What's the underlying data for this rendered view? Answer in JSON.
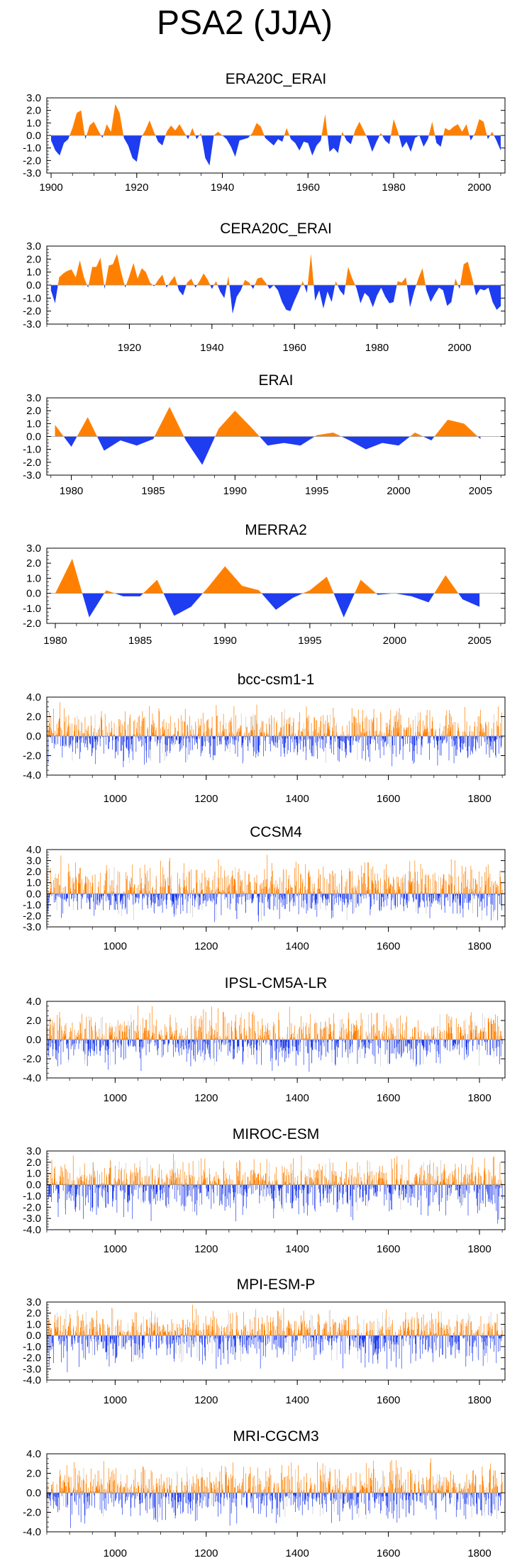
{
  "title": "PSA2 (JJA)",
  "colors": {
    "positive": "#ff8000",
    "negative": "#1e3cf0",
    "axis": "#000000"
  },
  "chart_data": [
    {
      "type": "area",
      "title": "ERA20C_ERAI",
      "xlim": [
        1899,
        2006
      ],
      "ylim": [
        -3.0,
        3.0
      ],
      "yticks": [
        "3.0",
        "2.0",
        "1.0",
        "0.0",
        "-1.0",
        "-2.0",
        "-3.0"
      ],
      "xticks": [
        1900,
        1920,
        1940,
        1960,
        1980,
        2000
      ],
      "x": [
        1900,
        1901,
        1902,
        1903,
        1904,
        1905,
        1906,
        1907,
        1908,
        1909,
        1910,
        1911,
        1912,
        1913,
        1914,
        1915,
        1916,
        1917,
        1918,
        1919,
        1920,
        1921,
        1922,
        1923,
        1924,
        1925,
        1926,
        1927,
        1928,
        1929,
        1930,
        1931,
        1932,
        1933,
        1934,
        1935,
        1936,
        1937,
        1938,
        1939,
        1940,
        1941,
        1942,
        1943,
        1944,
        1945,
        1946,
        1947,
        1948,
        1949,
        1950,
        1951,
        1952,
        1953,
        1954,
        1955,
        1956,
        1957,
        1958,
        1959,
        1960,
        1961,
        1962,
        1963,
        1964,
        1965,
        1966,
        1967,
        1968,
        1969,
        1970,
        1971,
        1972,
        1973,
        1974,
        1975,
        1976,
        1977,
        1978,
        1979,
        1980,
        1981,
        1982,
        1983,
        1984,
        1985,
        1986,
        1987,
        1988,
        1989,
        1990,
        1991,
        1992,
        1993,
        1994,
        1995,
        1996,
        1997,
        1998,
        1999,
        2000,
        2001,
        2002,
        2003,
        2004,
        2005
      ],
      "values": [
        -0.4,
        -1.2,
        -1.6,
        -0.6,
        -0.3,
        0.6,
        1.8,
        2.0,
        -0.3,
        0.8,
        1.1,
        0.4,
        -0.2,
        0.9,
        0.3,
        2.5,
        1.8,
        -0.2,
        -0.8,
        -1.8,
        -2.1,
        -0.2,
        0.4,
        1.2,
        0.3,
        -0.5,
        -0.8,
        0.3,
        0.8,
        0.4,
        0.9,
        0.3,
        -0.3,
        0.6,
        -0.3,
        0.2,
        -1.8,
        -2.4,
        0.0,
        0.3,
        0.0,
        -0.3,
        -0.9,
        -1.7,
        -0.4,
        -0.3,
        -0.2,
        0.2,
        1.0,
        0.7,
        -0.2,
        -0.5,
        -0.8,
        -0.3,
        -0.5,
        0.6,
        -0.3,
        -0.6,
        -1.2,
        -0.5,
        -0.6,
        -1.6,
        -0.8,
        -0.4,
        1.7,
        -1.3,
        -1.0,
        -1.4,
        0.3,
        -0.4,
        -0.7,
        0.4,
        1.1,
        0.4,
        -0.3,
        -1.3,
        -0.5,
        0.2,
        -0.4,
        -0.7,
        1.3,
        0.3,
        -1.0,
        -0.5,
        -1.3,
        -0.2,
        0.0,
        -0.9,
        -0.3,
        1.1,
        -0.6,
        -0.9,
        0.6,
        0.4,
        0.7,
        0.9,
        0.3,
        0.9,
        -0.4,
        0.2,
        1.3,
        1.1,
        -0.3,
        0.3,
        -0.4,
        -1.2
      ]
    },
    {
      "type": "area",
      "title": "CERA20C_ERAI",
      "xlim": [
        1900,
        2011
      ],
      "ylim": [
        -3.0,
        3.0
      ],
      "yticks": [
        "3.0",
        "2.0",
        "1.0",
        "0.0",
        "-1.0",
        "-2.0",
        "-3.0"
      ],
      "xticks": [
        1920,
        1940,
        1960,
        1980,
        2000
      ],
      "x": [
        1901,
        1902,
        1903,
        1904,
        1905,
        1906,
        1907,
        1908,
        1909,
        1910,
        1911,
        1912,
        1913,
        1914,
        1915,
        1916,
        1917,
        1918,
        1919,
        1920,
        1921,
        1922,
        1923,
        1924,
        1925,
        1926,
        1927,
        1928,
        1929,
        1930,
        1931,
        1932,
        1933,
        1934,
        1935,
        1936,
        1937,
        1938,
        1939,
        1940,
        1941,
        1942,
        1943,
        1944,
        1945,
        1946,
        1947,
        1948,
        1949,
        1950,
        1951,
        1952,
        1953,
        1954,
        1955,
        1956,
        1957,
        1958,
        1959,
        1960,
        1961,
        1962,
        1963,
        1964,
        1965,
        1966,
        1967,
        1968,
        1969,
        1970,
        1971,
        1972,
        1973,
        1974,
        1975,
        1976,
        1977,
        1978,
        1979,
        1980,
        1981,
        1982,
        1983,
        1984,
        1985,
        1986,
        1987,
        1988,
        1989,
        1990,
        1991,
        1992,
        1993,
        1994,
        1995,
        1996,
        1997,
        1998,
        1999,
        2000,
        2001,
        2002,
        2003,
        2004,
        2005,
        2006,
        2007,
        2008,
        2009,
        2010
      ],
      "values": [
        -0.4,
        -1.4,
        0.6,
        0.9,
        1.1,
        1.2,
        0.6,
        1.9,
        0.6,
        -0.2,
        1.4,
        1.4,
        2.1,
        -0.3,
        1.5,
        1.6,
        2.4,
        1.0,
        -0.2,
        0.7,
        1.7,
        0.5,
        1.3,
        1.0,
        0.2,
        -0.1,
        0.4,
        0.8,
        -0.2,
        0.3,
        0.7,
        -0.4,
        -0.8,
        0.2,
        0.5,
        -0.2,
        0.3,
        0.9,
        0.4,
        -0.3,
        0.3,
        -0.5,
        -1.0,
        0.7,
        -2.2,
        -0.9,
        -0.4,
        0.4,
        0.2,
        -0.3,
        0.5,
        0.6,
        0.2,
        -0.3,
        0.0,
        -0.4,
        -1.3,
        -1.9,
        -2.0,
        -1.2,
        -0.5,
        0.3,
        -0.6,
        2.4,
        -1.2,
        -0.4,
        -1.8,
        -0.5,
        -1.3,
        0.3,
        -0.4,
        -0.8,
        1.4,
        0.5,
        -0.2,
        -1.4,
        -0.6,
        -0.9,
        -1.7,
        -0.8,
        -0.2,
        -0.9,
        -1.4,
        -1.3,
        0.3,
        0.2,
        0.6,
        -1.7,
        -0.5,
        0.5,
        1.3,
        -0.4,
        -1.3,
        -0.7,
        -0.2,
        -0.4,
        -1.6,
        -1.3,
        0.5,
        -0.3,
        1.6,
        1.8,
        0.6,
        -0.8,
        -0.3,
        -0.4,
        -0.2,
        -1.3,
        -1.9,
        -1.6
      ]
    },
    {
      "type": "area",
      "title": "ERAI",
      "xlim": [
        1978.5,
        2006.5
      ],
      "ylim": [
        -3.0,
        3.0
      ],
      "yticks": [
        "3.0",
        "2.0",
        "1.0",
        "0.0",
        "-1.0",
        "-2.0",
        "-3.0"
      ],
      "xticks": [
        1980,
        1985,
        1990,
        1995,
        2000,
        2005
      ],
      "x": [
        1979,
        1980,
        1981,
        1982,
        1983,
        1984,
        1985,
        1986,
        1987,
        1988,
        1989,
        1990,
        1991,
        1992,
        1993,
        1994,
        1995,
        1996,
        1997,
        1998,
        1999,
        2000,
        2001,
        2002,
        2003,
        2004,
        2005
      ],
      "values": [
        0.9,
        -0.8,
        1.5,
        -1.1,
        -0.3,
        -0.7,
        -0.2,
        2.3,
        -0.3,
        -2.2,
        0.6,
        2.0,
        0.7,
        -0.7,
        -0.5,
        -0.7,
        0.1,
        0.3,
        -0.3,
        -1.0,
        -0.5,
        -0.7,
        0.3,
        -0.3,
        1.3,
        1.0,
        -0.2
      ]
    },
    {
      "type": "area",
      "title": "MERRA2",
      "xlim": [
        1979.5,
        2006.5
      ],
      "ylim": [
        -2.0,
        3.0
      ],
      "yticks": [
        "3.0",
        "2.0",
        "1.0",
        "0.0",
        "-1.0",
        "-2.0"
      ],
      "xticks": [
        1980,
        1985,
        1990,
        1995,
        2000,
        2005
      ],
      "x": [
        1980,
        1981,
        1982,
        1983,
        1984,
        1985,
        1986,
        1987,
        1988,
        1989,
        1990,
        1991,
        1992,
        1993,
        1994,
        1995,
        1996,
        1997,
        1998,
        1999,
        2000,
        2001,
        2002,
        2003,
        2004,
        2005
      ],
      "values": [
        0.0,
        2.3,
        -1.6,
        0.2,
        -0.2,
        -0.2,
        0.9,
        -1.5,
        -0.9,
        0.4,
        1.8,
        0.5,
        0.2,
        -1.1,
        -0.3,
        0.2,
        1.1,
        -1.6,
        0.9,
        -0.1,
        0.0,
        -0.2,
        -0.6,
        1.2,
        -0.4,
        -0.9
      ]
    },
    {
      "type": "bar",
      "title": "bcc-csm1-1",
      "xlim": [
        850,
        1856
      ],
      "ylim": [
        -4.0,
        4.0
      ],
      "yticks": [
        "4.0",
        "2.0",
        "0.0",
        "-2.0",
        "-4.0"
      ],
      "xticks": [
        1000,
        1200,
        1400,
        1600,
        1800
      ],
      "years": [
        850,
        1850
      ],
      "values_note": "1001 annual values (850-1850) shown as thin bars; typical range -3.2 to 3.4"
    },
    {
      "type": "bar",
      "title": "CCSM4",
      "xlim": [
        850,
        1856
      ],
      "ylim": [
        -3.0,
        4.0
      ],
      "yticks": [
        "4.0",
        "3.0",
        "2.0",
        "1.0",
        "0.0",
        "-1.0",
        "-2.0",
        "-3.0"
      ],
      "xticks": [
        1000,
        1200,
        1400,
        1600,
        1800
      ],
      "years": [
        850,
        1850
      ],
      "values_note": "1001 annual values (850-1850) shown as thin bars; typical range -2.8 to 3.5"
    },
    {
      "type": "bar",
      "title": "IPSL-CM5A-LR",
      "xlim": [
        850,
        1856
      ],
      "ylim": [
        -4.0,
        4.0
      ],
      "yticks": [
        "4.0",
        "2.0",
        "0.0",
        "-2.0",
        "-4.0"
      ],
      "xticks": [
        1000,
        1200,
        1400,
        1600,
        1800
      ],
      "years": [
        850,
        1850
      ],
      "values_note": "1001 annual values (850-1850) shown as thin bars; typical range -3.1 to 3.0"
    },
    {
      "type": "bar",
      "title": "MIROC-ESM",
      "xlim": [
        850,
        1856
      ],
      "ylim": [
        -4.0,
        3.0
      ],
      "yticks": [
        "3.0",
        "2.0",
        "1.0",
        "0.0",
        "-1.0",
        "-2.0",
        "-3.0",
        "-4.0"
      ],
      "xticks": [
        1000,
        1200,
        1400,
        1600,
        1800
      ],
      "years": [
        850,
        1850
      ],
      "values_note": "1001 annual values (850-1850) shown as thin bars; typical range -3.7 to 2.6"
    },
    {
      "type": "bar",
      "title": "MPI-ESM-P",
      "xlim": [
        850,
        1856
      ],
      "ylim": [
        -4.0,
        3.0
      ],
      "yticks": [
        "3.0",
        "2.0",
        "1.0",
        "0.0",
        "-1.0",
        "-2.0",
        "-3.0",
        "-4.0"
      ],
      "xticks": [
        1000,
        1200,
        1400,
        1600,
        1800
      ],
      "years": [
        850,
        1850
      ],
      "values_note": "1001 annual values (850-1850) shown as thin bars; typical range -3.3 to 2.7"
    },
    {
      "type": "bar",
      "title": "MRI-CGCM3",
      "xlim": [
        850,
        1856
      ],
      "ylim": [
        -4.0,
        4.0
      ],
      "yticks": [
        "4.0",
        "2.0",
        "0.0",
        "-2.0",
        "-4.0"
      ],
      "xticks": [
        1000,
        1200,
        1400,
        1600,
        1800
      ],
      "years": [
        850,
        1850
      ],
      "values_note": "1001 annual values (850-1850) shown as thin bars; typical range -3.0 to 3.3"
    }
  ]
}
